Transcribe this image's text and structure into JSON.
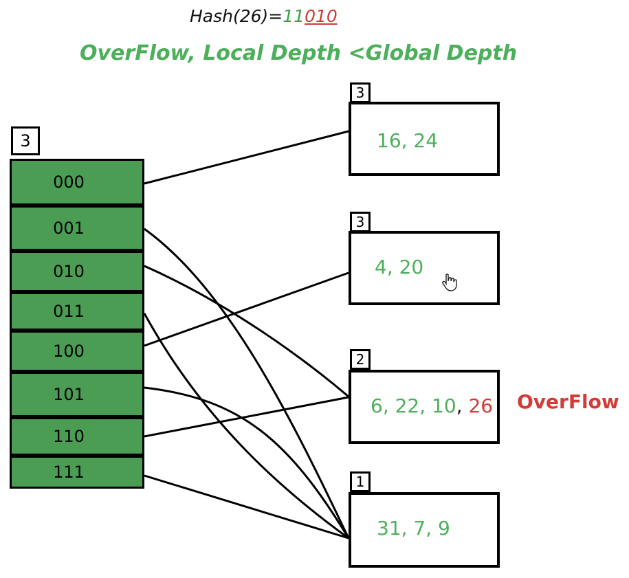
{
  "hash": {
    "prefix": "Hash(26)=",
    "high_bits": "11",
    "low_bits": "010"
  },
  "headline": "OverFlow, Local Depth <Global Depth",
  "directory": {
    "global_depth": "3",
    "entries": [
      "000",
      "001",
      "010",
      "011",
      "100",
      "101",
      "110",
      "111"
    ]
  },
  "buckets": [
    {
      "local_depth": "3",
      "values": "16, 24"
    },
    {
      "local_depth": "3",
      "values": "4, 20"
    },
    {
      "local_depth": "2",
      "values_main": "6, 22, 10",
      "values_sep": ",",
      "values_over": " 26"
    },
    {
      "local_depth": "1",
      "values": "31, 7, 9"
    }
  ],
  "overflow_label": "OverFlow",
  "links": [
    {
      "from": "000",
      "to_bucket": 0
    },
    {
      "from": "001",
      "to_bucket": 3
    },
    {
      "from": "010",
      "to_bucket": 2
    },
    {
      "from": "011",
      "to_bucket": 3
    },
    {
      "from": "100",
      "to_bucket": 1
    },
    {
      "from": "101",
      "to_bucket": 3
    },
    {
      "from": "110",
      "to_bucket": 2
    },
    {
      "from": "111",
      "to_bucket": 3
    }
  ],
  "colors": {
    "cell_fill": "#4a9d53",
    "green_text": "#4caf5a",
    "red_text": "#d33b36"
  }
}
